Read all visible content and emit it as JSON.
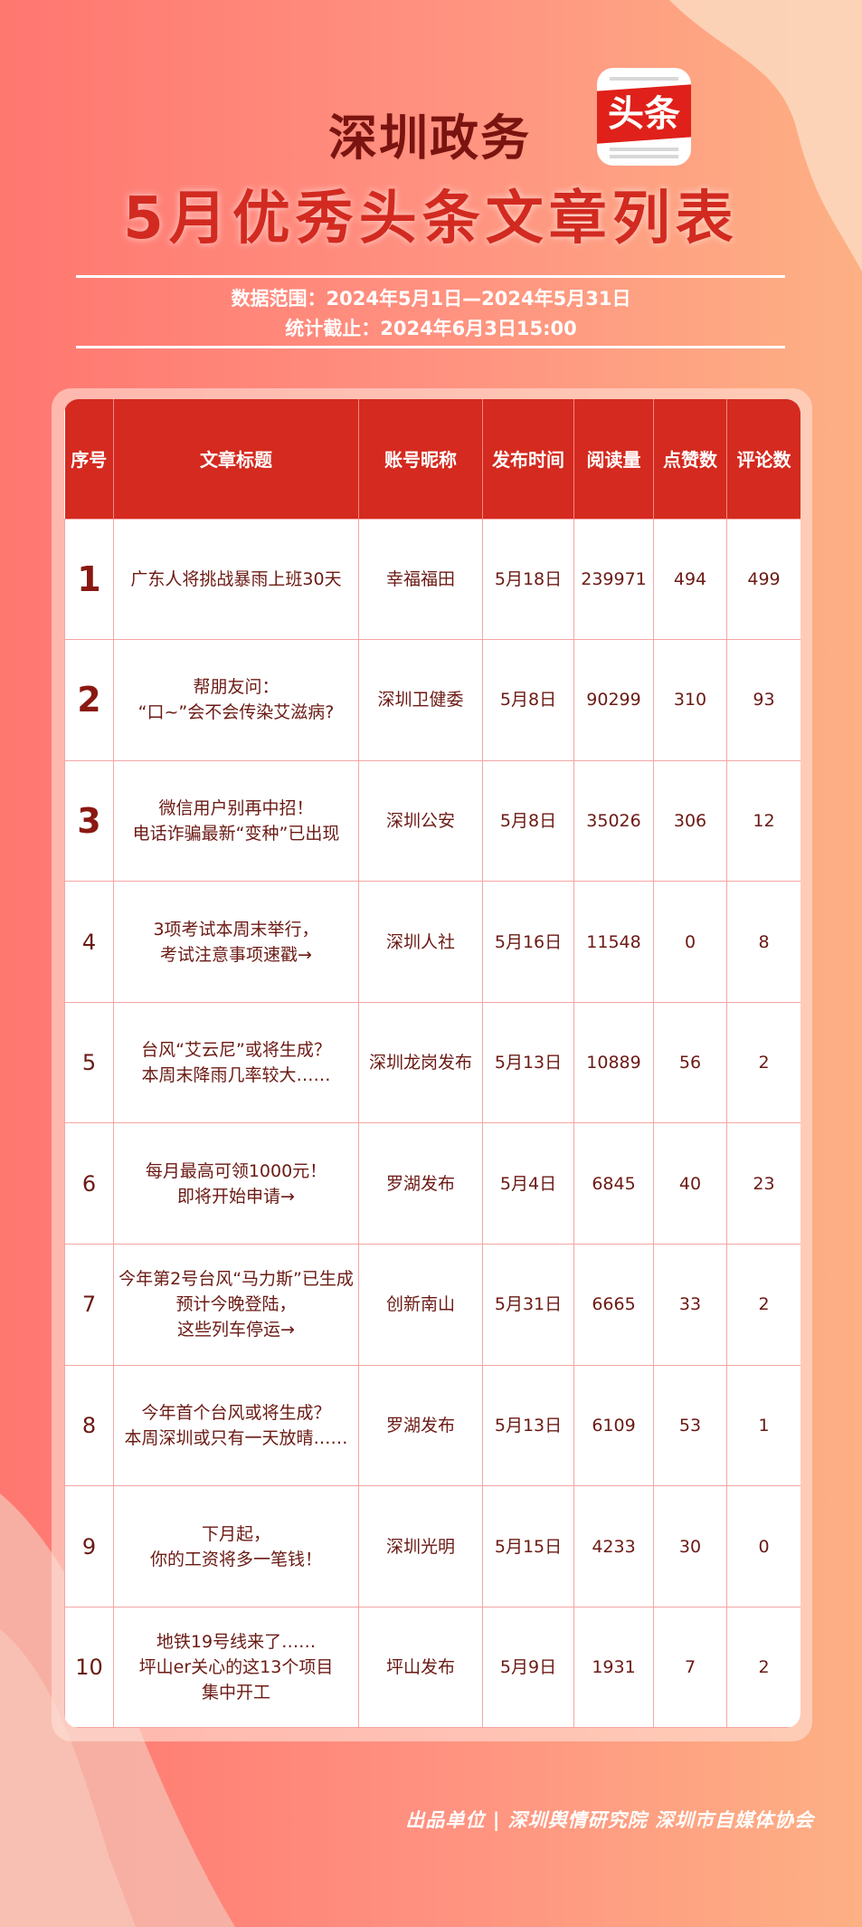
{
  "header": {
    "title_line1": "深圳政务",
    "logo_text": "头条",
    "title_line2": "5月优秀头条文章列表",
    "data_range": "数据范围：2024年5月1日—2024年5月31日",
    "cutoff": "统计截止：2024年6月3日15:00"
  },
  "colors": {
    "header_bg": "#d42a1f",
    "text": "#6b1a14",
    "title": "#d22a20",
    "grid": "#f4a5a5"
  },
  "table": {
    "columns": [
      "序号",
      "文章标题",
      "账号昵称",
      "发布时间",
      "阅读量",
      "点赞数",
      "评论数"
    ],
    "rows": [
      {
        "rank": "1",
        "title": "广东人将挑战暴雨上班30天",
        "account": "幸福福田",
        "date": "5月18日",
        "reads": "239971",
        "likes": "494",
        "comments": "499"
      },
      {
        "rank": "2",
        "title": "帮朋友问：\n“口~”会不会传染艾滋病?",
        "account": "深圳卫健委",
        "date": "5月8日",
        "reads": "90299",
        "likes": "310",
        "comments": "93"
      },
      {
        "rank": "3",
        "title": "微信用户别再中招！\n电话诈骗最新“变种”已出现",
        "account": "深圳公安",
        "date": "5月8日",
        "reads": "35026",
        "likes": "306",
        "comments": "12"
      },
      {
        "rank": "4",
        "title": "3项考试本周末举行，\n考试注意事项速戳→",
        "account": "深圳人社",
        "date": "5月16日",
        "reads": "11548",
        "likes": "0",
        "comments": "8"
      },
      {
        "rank": "5",
        "title": "台风“艾云尼”或将生成？\n本周末降雨几率较大……",
        "account": "深圳龙岗发布",
        "date": "5月13日",
        "reads": "10889",
        "likes": "56",
        "comments": "2"
      },
      {
        "rank": "6",
        "title": "每月最高可领1000元！\n即将开始申请→",
        "account": "罗湖发布",
        "date": "5月4日",
        "reads": "6845",
        "likes": "40",
        "comments": "23"
      },
      {
        "rank": "7",
        "title": "今年第2号台风“马力斯”已生成\n预计今晚登陆，\n这些列车停运→",
        "account": "创新南山",
        "date": "5月31日",
        "reads": "6665",
        "likes": "33",
        "comments": "2"
      },
      {
        "rank": "8",
        "title": "今年首个台风或将生成？\n本周深圳或只有一天放晴……",
        "account": "罗湖发布",
        "date": "5月13日",
        "reads": "6109",
        "likes": "53",
        "comments": "1"
      },
      {
        "rank": "9",
        "title": "下月起，\n你的工资将多一笔钱！",
        "account": "深圳光明",
        "date": "5月15日",
        "reads": "4233",
        "likes": "30",
        "comments": "0"
      },
      {
        "rank": "10",
        "title": "地铁19号线来了……\n坪山er关心的这13个项目\n集中开工",
        "account": "坪山发布",
        "date": "5月9日",
        "reads": "1931",
        "likes": "7",
        "comments": "2"
      }
    ]
  },
  "footer": {
    "text": "出品单位 | 深圳舆情研究院 深圳市自媒体协会"
  }
}
